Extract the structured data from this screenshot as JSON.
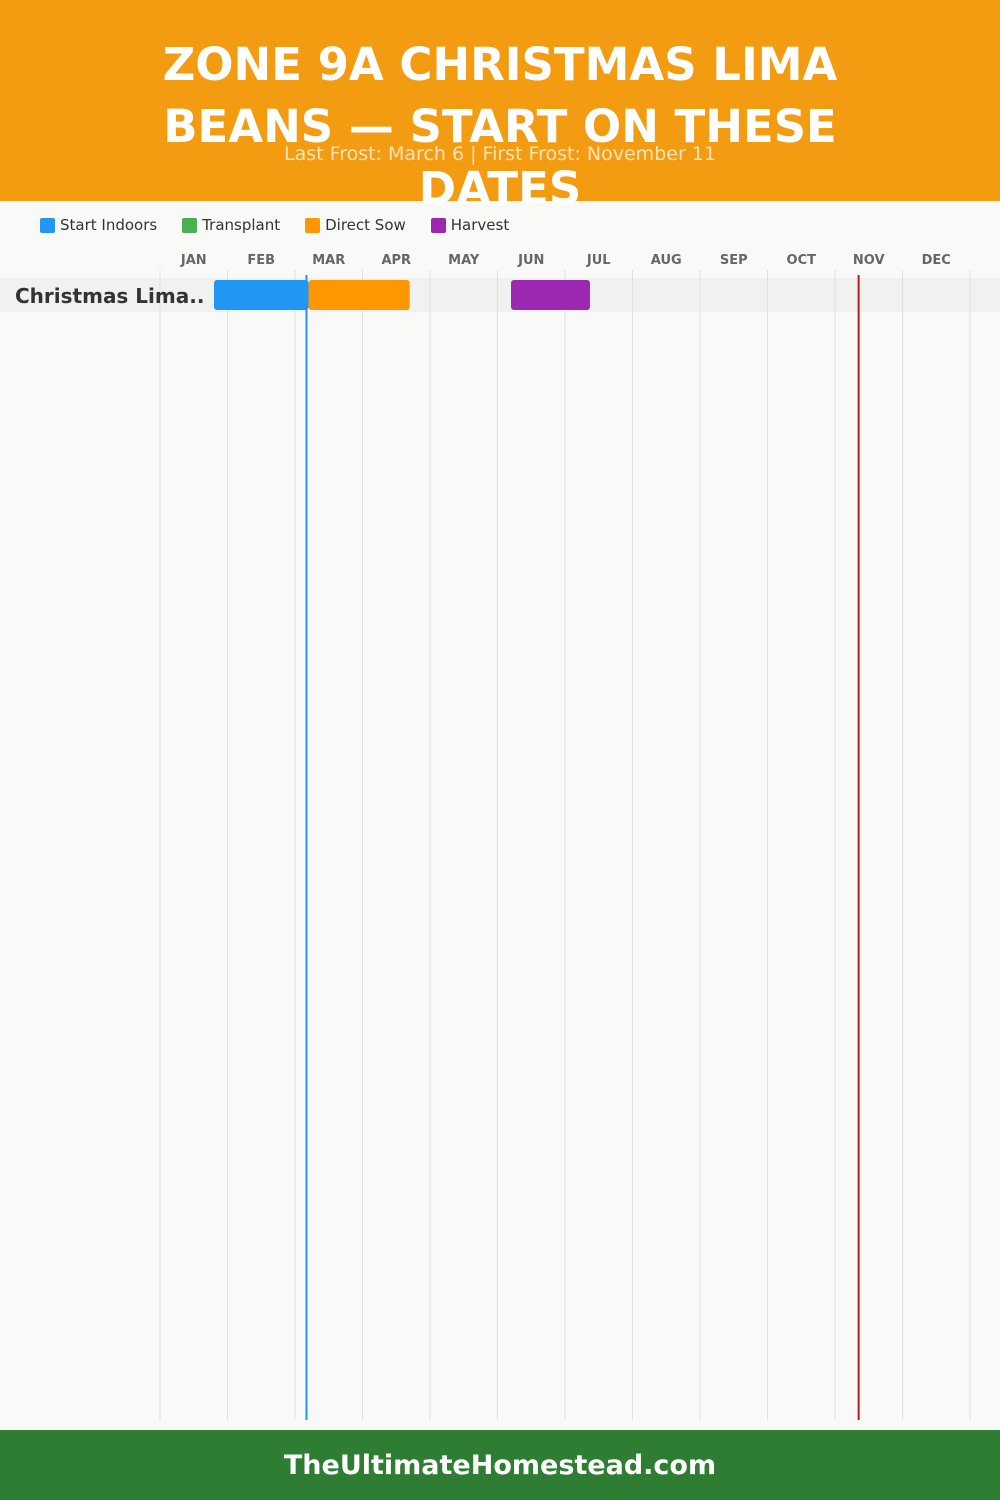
{
  "header": {
    "title": "ZONE 9A CHRISTMAS LIMA BEANS — START ON THESE DATES",
    "subtitle": "Last Frost: March 6 | First Frost: November 11"
  },
  "legend": [
    {
      "label": "Start Indoors",
      "color": "#2196f3"
    },
    {
      "label": "Transplant",
      "color": "#4caf50"
    },
    {
      "label": "Direct Sow",
      "color": "#ff9800"
    },
    {
      "label": "Harvest",
      "color": "#9c27b0"
    }
  ],
  "footer": {
    "text": "TheUltimateHomestead.com"
  },
  "chart_data": {
    "type": "gantt",
    "months": [
      "JAN",
      "FEB",
      "MAR",
      "APR",
      "MAY",
      "JUN",
      "JUL",
      "AUG",
      "SEP",
      "OCT",
      "NOV",
      "DEC"
    ],
    "frost_lines": [
      {
        "month_value": 2.17,
        "color": "#2196f3"
      },
      {
        "month_value": 10.35,
        "color": "#b71c1c"
      }
    ],
    "rows": [
      {
        "label": "Christmas Lima..",
        "bars": [
          {
            "phase": "Start Indoors",
            "start": 0.8,
            "end": 2.2,
            "color": "#2196f3"
          },
          {
            "phase": "Direct Sow",
            "start": 2.2,
            "end": 3.7,
            "color": "#ff9800"
          },
          {
            "phase": "Harvest",
            "start": 5.2,
            "end": 6.37,
            "color": "#9c27b0"
          }
        ]
      }
    ]
  }
}
